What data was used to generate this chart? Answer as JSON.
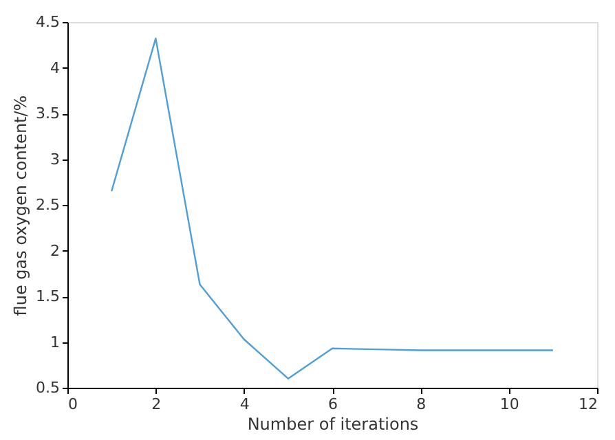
{
  "chart_data": {
    "type": "line",
    "xlabel": "Number of iterations",
    "ylabel": "flue gas oxygen content/%",
    "x": [
      1,
      2,
      3,
      4,
      5,
      6,
      7,
      8,
      9,
      10,
      11
    ],
    "series": [
      {
        "color": "#4f9fd8",
        "values": [
          2.65,
          4.32,
          1.63,
          1.03,
          0.6,
          0.93,
          0.92,
          0.91,
          0.91,
          0.91,
          0.91
        ]
      }
    ],
    "xlim": [
      0,
      12
    ],
    "xticks": [
      0,
      2,
      4,
      6,
      8,
      10,
      12
    ],
    "ylim": [
      0.5,
      4.5
    ],
    "yticks": [
      0.5,
      1,
      1.5,
      2,
      2.5,
      3,
      3.5,
      4,
      4.5
    ],
    "grid": false,
    "marker": "none",
    "line_style": "solid"
  }
}
